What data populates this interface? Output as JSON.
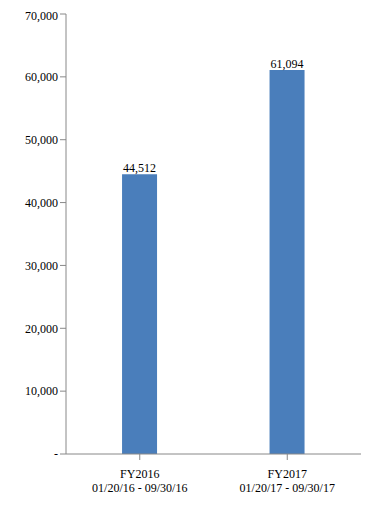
{
  "chart_data": {
    "type": "bar",
    "categories": [
      "FY2016\n01/20/16 - 09/30/16",
      "FY2017\n01/20/17 - 09/30/17"
    ],
    "values": [
      44512,
      61094
    ],
    "value_labels": [
      "44,512",
      "61,094"
    ],
    "data_labels": true,
    "color": "#4a7ebb",
    "ylim": [
      0,
      70000
    ],
    "yticks": [
      {
        "value": 0,
        "label": "-"
      },
      {
        "value": 10000,
        "label": "10,000"
      },
      {
        "value": 20000,
        "label": "20,000"
      },
      {
        "value": 30000,
        "label": "30,000"
      },
      {
        "value": 40000,
        "label": "40,000"
      },
      {
        "value": 50000,
        "label": "50,000"
      },
      {
        "value": 60000,
        "label": "60,000"
      },
      {
        "value": 70000,
        "label": "70,000"
      }
    ],
    "grid": false
  }
}
